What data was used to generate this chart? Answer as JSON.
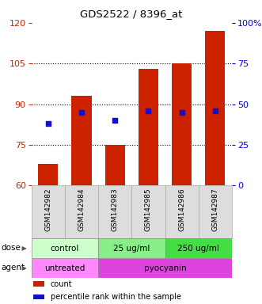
{
  "title": "GDS2522 / 8396_at",
  "samples": [
    "GSM142982",
    "GSM142984",
    "GSM142983",
    "GSM142985",
    "GSM142986",
    "GSM142987"
  ],
  "bar_tops": [
    68,
    93,
    75,
    103,
    105,
    117
  ],
  "bar_bottom": 60,
  "percentile_values": [
    38,
    45,
    40,
    46,
    45,
    46
  ],
  "ylim_left": [
    60,
    120
  ],
  "yticks_left": [
    60,
    75,
    90,
    105,
    120
  ],
  "ylim_right": [
    0,
    100
  ],
  "yticks_right": [
    0,
    25,
    50,
    75,
    100
  ],
  "yticklabels_right": [
    "0",
    "25",
    "50",
    "75",
    "100%"
  ],
  "bar_color": "#cc2200",
  "dot_color": "#1111cc",
  "grid_yticks": [
    75,
    90,
    105
  ],
  "left_axis_color": "#cc2200",
  "right_axis_color": "#0000cc",
  "dose_groups": [
    {
      "label": "control",
      "start": 0,
      "end": 2,
      "color": "#ccffcc"
    },
    {
      "label": "25 ug/ml",
      "start": 2,
      "end": 4,
      "color": "#88ee88"
    },
    {
      "label": "250 ug/ml",
      "start": 4,
      "end": 6,
      "color": "#44dd44"
    }
  ],
  "agent_groups": [
    {
      "label": "untreated",
      "start": 0,
      "end": 2,
      "color": "#ff88ff"
    },
    {
      "label": "pyocyanin",
      "start": 2,
      "end": 6,
      "color": "#dd44dd"
    }
  ],
  "dose_label": "dose",
  "agent_label": "agent",
  "legend_items": [
    {
      "label": "count",
      "color": "#cc2200"
    },
    {
      "label": "percentile rank within the sample",
      "color": "#1111cc"
    }
  ]
}
